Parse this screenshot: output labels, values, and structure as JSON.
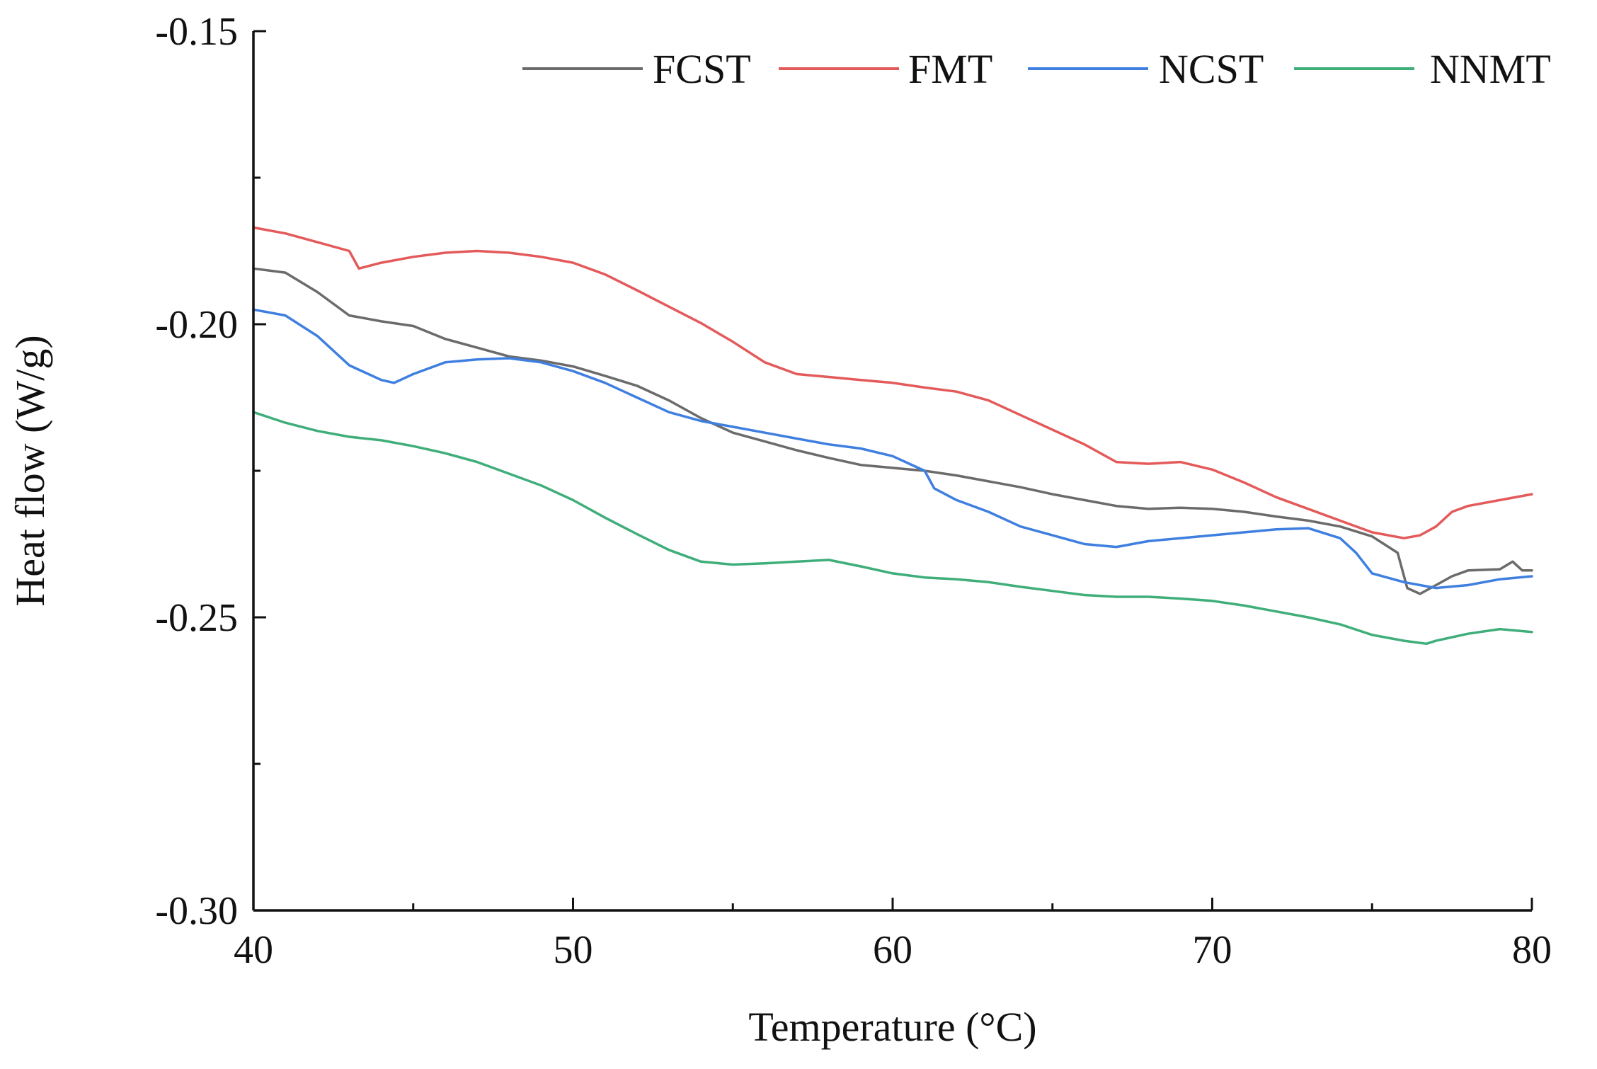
{
  "chart_data": {
    "type": "line",
    "title": "",
    "xlabel": "Temperature (°C)",
    "ylabel": "Heat flow (W/g)",
    "xlim": [
      40,
      80
    ],
    "ylim": [
      -0.3,
      -0.15
    ],
    "xticks": [
      40,
      50,
      60,
      70,
      80
    ],
    "xtick_labels": [
      "40",
      "50",
      "60",
      "70",
      "80"
    ],
    "yticks": [
      -0.15,
      -0.2,
      -0.25,
      -0.3
    ],
    "ytick_labels": [
      "-0.15",
      "-0.20",
      "-0.25",
      "-0.30"
    ],
    "grid": false,
    "legend_position": "top-right",
    "series": [
      {
        "name": "FCST",
        "color": "#6b6b6b",
        "x": [
          40,
          41,
          42,
          43,
          44,
          45,
          46,
          47,
          48,
          49,
          50,
          51,
          52,
          53,
          54,
          55,
          56,
          57,
          58,
          59,
          60,
          61,
          62,
          63,
          64,
          65,
          66,
          67,
          68,
          69,
          70,
          71,
          72,
          73,
          74,
          75,
          75.8,
          76.1,
          76.5,
          77,
          77.5,
          78,
          79,
          79.4,
          79.7,
          80
        ],
        "y": [
          -0.1905,
          -0.1912,
          -0.1945,
          -0.1985,
          -0.1995,
          -0.2003,
          -0.2025,
          -0.204,
          -0.2055,
          -0.2062,
          -0.2072,
          -0.2088,
          -0.2105,
          -0.213,
          -0.216,
          -0.2185,
          -0.22,
          -0.2215,
          -0.2228,
          -0.224,
          -0.2245,
          -0.225,
          -0.2258,
          -0.2268,
          -0.2278,
          -0.229,
          -0.23,
          -0.231,
          -0.2315,
          -0.2313,
          -0.2315,
          -0.232,
          -0.2328,
          -0.2335,
          -0.2345,
          -0.2362,
          -0.239,
          -0.245,
          -0.246,
          -0.2445,
          -0.243,
          -0.242,
          -0.2418,
          -0.2405,
          -0.242,
          -0.242
        ]
      },
      {
        "name": "FMT",
        "color": "#e45a5a",
        "x": [
          40,
          41,
          42,
          43,
          43.3,
          44,
          45,
          46,
          47,
          48,
          49,
          50,
          51,
          52,
          53,
          54,
          55,
          56,
          57,
          58,
          59,
          60,
          61,
          62,
          63,
          64,
          65,
          66,
          67,
          68,
          69,
          70,
          71,
          72,
          73,
          74,
          75,
          76,
          76.5,
          77,
          77.5,
          78,
          79,
          80
        ],
        "y": [
          -0.1835,
          -0.1845,
          -0.186,
          -0.1875,
          -0.1905,
          -0.1895,
          -0.1885,
          -0.1878,
          -0.1875,
          -0.1878,
          -0.1885,
          -0.1895,
          -0.1915,
          -0.1942,
          -0.197,
          -0.1998,
          -0.203,
          -0.2065,
          -0.2085,
          -0.209,
          -0.2095,
          -0.21,
          -0.2108,
          -0.2115,
          -0.213,
          -0.2155,
          -0.218,
          -0.2205,
          -0.2235,
          -0.2238,
          -0.2235,
          -0.2248,
          -0.227,
          -0.2295,
          -0.2315,
          -0.2335,
          -0.2355,
          -0.2365,
          -0.236,
          -0.2345,
          -0.232,
          -0.231,
          -0.23,
          -0.229
        ]
      },
      {
        "name": "NCST",
        "color": "#3f7fe0",
        "x": [
          40,
          41,
          42,
          43,
          44,
          44.4,
          45,
          46,
          47,
          48,
          49,
          50,
          51,
          52,
          53,
          54,
          55,
          56,
          57,
          58,
          59,
          60,
          61,
          61.3,
          62,
          63,
          64,
          65,
          66,
          67,
          68,
          69,
          70,
          71,
          72,
          73,
          74,
          74.5,
          75,
          76,
          77,
          78,
          79,
          80
        ],
        "y": [
          -0.1975,
          -0.1985,
          -0.202,
          -0.207,
          -0.2095,
          -0.21,
          -0.2085,
          -0.2065,
          -0.206,
          -0.2058,
          -0.2065,
          -0.208,
          -0.21,
          -0.2125,
          -0.215,
          -0.2165,
          -0.2175,
          -0.2185,
          -0.2195,
          -0.2205,
          -0.2212,
          -0.2225,
          -0.225,
          -0.228,
          -0.23,
          -0.232,
          -0.2345,
          -0.236,
          -0.2375,
          -0.238,
          -0.237,
          -0.2365,
          -0.236,
          -0.2355,
          -0.235,
          -0.2348,
          -0.2365,
          -0.239,
          -0.2425,
          -0.244,
          -0.245,
          -0.2445,
          -0.2435,
          -0.243
        ]
      },
      {
        "name": "NNMT",
        "color": "#3fae7a",
        "x": [
          40,
          41,
          42,
          43,
          44,
          45,
          46,
          47,
          48,
          49,
          50,
          51,
          52,
          53,
          54,
          55,
          56,
          57,
          58,
          59,
          60,
          61,
          62,
          63,
          64,
          65,
          66,
          67,
          68,
          69,
          70,
          71,
          72,
          73,
          74,
          75,
          76,
          76.7,
          77,
          78,
          79,
          80
        ],
        "y": [
          -0.215,
          -0.2168,
          -0.2182,
          -0.2192,
          -0.2198,
          -0.2208,
          -0.222,
          -0.2235,
          -0.2255,
          -0.2275,
          -0.23,
          -0.233,
          -0.2358,
          -0.2385,
          -0.2405,
          -0.241,
          -0.2408,
          -0.2405,
          -0.2402,
          -0.2413,
          -0.2425,
          -0.2432,
          -0.2435,
          -0.244,
          -0.2448,
          -0.2455,
          -0.2462,
          -0.2465,
          -0.2465,
          -0.2468,
          -0.2472,
          -0.248,
          -0.249,
          -0.25,
          -0.2512,
          -0.253,
          -0.254,
          -0.2545,
          -0.254,
          -0.2528,
          -0.252,
          -0.2525
        ]
      }
    ]
  }
}
